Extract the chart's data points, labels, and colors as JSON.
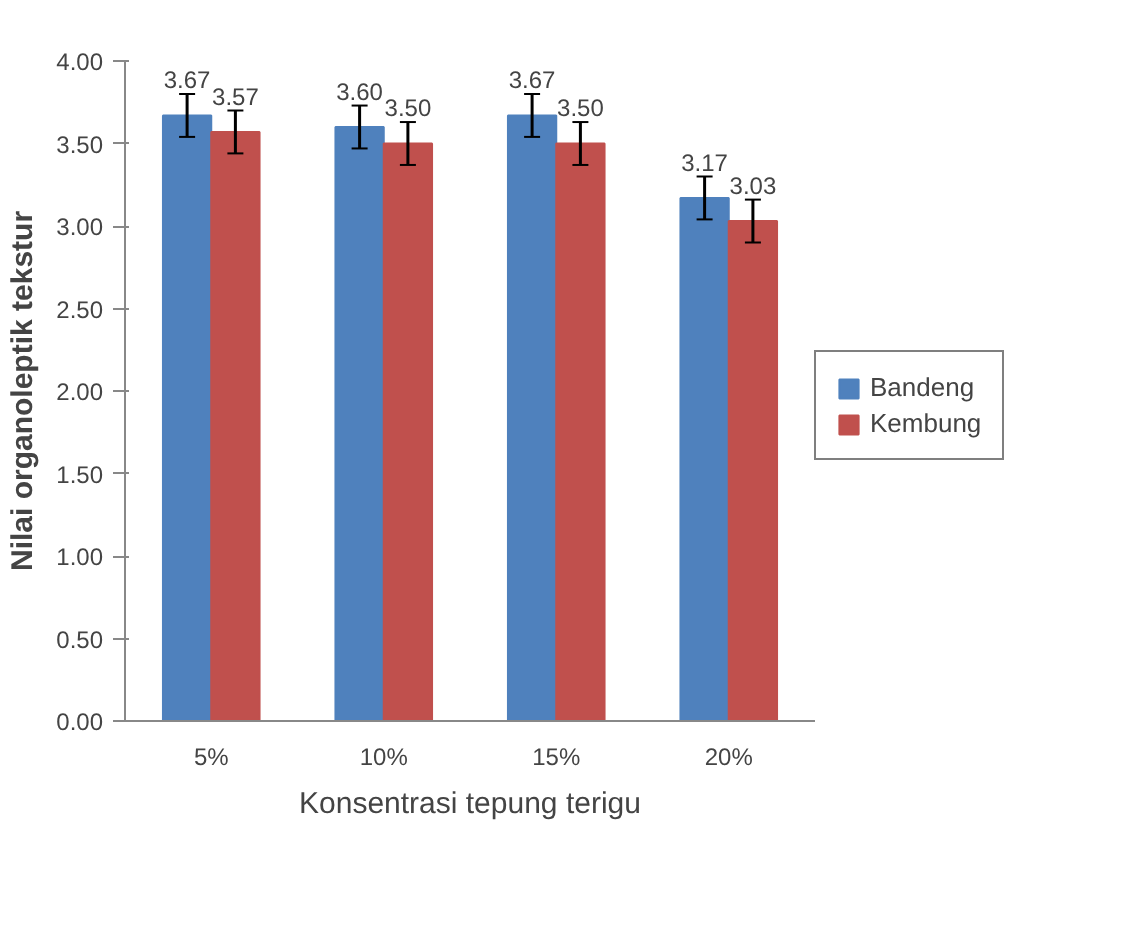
{
  "chart_data": {
    "type": "bar",
    "xlabel": "Konsentrasi tepung terigu",
    "ylabel": "Nilai organoleptik tekstur",
    "categories": [
      "5%",
      "10%",
      "15%",
      "20%"
    ],
    "series": [
      {
        "name": "Bandeng",
        "color": "#4f81bd",
        "values": [
          3.67,
          3.6,
          3.67,
          3.17
        ],
        "errors": [
          0.13,
          0.13,
          0.13,
          0.13
        ],
        "value_labels": [
          "3.67",
          "3.60",
          "3.67",
          "3.17"
        ]
      },
      {
        "name": "Kembung",
        "color": "#c0504d",
        "values": [
          3.57,
          3.5,
          3.5,
          3.03
        ],
        "errors": [
          0.13,
          0.13,
          0.13,
          0.13
        ],
        "value_labels": [
          "3.57",
          "3.50",
          "3.50",
          "3.03"
        ]
      }
    ],
    "ylim": [
      0,
      4
    ],
    "yticks": [
      {
        "value": 0,
        "label": "0.00"
      },
      {
        "value": 0.5,
        "label": "0.50"
      },
      {
        "value": 1,
        "label": "1.00"
      },
      {
        "value": 1.5,
        "label": "1.50"
      },
      {
        "value": 2,
        "label": "2.00"
      },
      {
        "value": 2.5,
        "label": "2.50"
      },
      {
        "value": 3,
        "label": "3.00"
      },
      {
        "value": 3.5,
        "label": "3.50"
      },
      {
        "value": 4,
        "label": "4.00"
      }
    ],
    "grid": false,
    "legend": "right"
  }
}
